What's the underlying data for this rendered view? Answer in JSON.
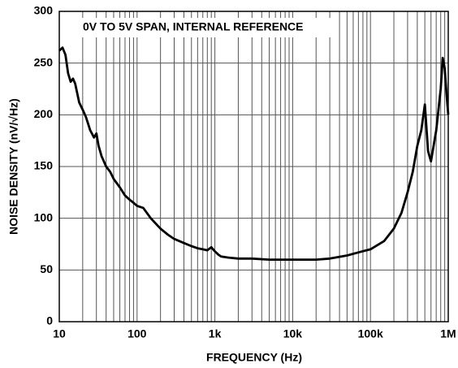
{
  "chart_data": {
    "type": "line",
    "annotation": "0V TO 5V SPAN, INTERNAL REFERENCE",
    "xlabel": "FREQUENCY (Hz)",
    "ylabel": "NOISE DENSITY (nV/√Hz)",
    "xscale": "log",
    "xlim": [
      10,
      1000000
    ],
    "ylim": [
      0,
      300
    ],
    "xticks": [
      10,
      100,
      {
        "value": 1000,
        "label": "1k"
      },
      {
        "value": 10000,
        "label": "10k"
      },
      {
        "value": 100000,
        "label": "100k"
      },
      {
        "value": 1000000,
        "label": "1M"
      }
    ],
    "x_minor_ticks": [
      20,
      30,
      40,
      50,
      60,
      70,
      80,
      90,
      200,
      300,
      400,
      500,
      600,
      700,
      800,
      900,
      2000,
      3000,
      4000,
      5000,
      6000,
      7000,
      8000,
      9000,
      20000,
      30000,
      40000,
      50000,
      60000,
      70000,
      80000,
      90000,
      200000,
      300000,
      400000,
      500000,
      600000,
      700000,
      800000,
      900000
    ],
    "yticks": [
      0,
      50,
      100,
      150,
      200,
      250,
      300
    ],
    "grid": true,
    "series": [
      {
        "color": "#000000",
        "x": [
          10,
          11,
          12,
          13,
          14,
          15,
          16,
          18,
          20,
          22,
          25,
          28,
          30,
          32,
          35,
          40,
          45,
          50,
          60,
          70,
          80,
          90,
          100,
          120,
          150,
          200,
          250,
          300,
          400,
          500,
          600,
          700,
          800,
          900,
          1000,
          1100,
          1200,
          1500,
          2000,
          3000,
          5000,
          7000,
          10000,
          20000,
          30000,
          50000,
          70000,
          100000,
          150000,
          200000,
          250000,
          300000,
          350000,
          400000,
          450000,
          500000,
          550000,
          600000,
          700000,
          800000,
          850000,
          900000,
          950000,
          1000000
        ],
        "values": [
          262,
          265,
          258,
          240,
          232,
          235,
          230,
          212,
          205,
          198,
          185,
          178,
          182,
          170,
          160,
          150,
          145,
          138,
          130,
          122,
          118,
          115,
          112,
          110,
          100,
          90,
          84,
          80,
          76,
          73,
          71,
          70,
          69,
          72,
          68,
          65,
          63,
          62,
          61,
          61,
          60,
          60,
          60,
          60,
          61,
          64,
          67,
          70,
          78,
          90,
          105,
          125,
          145,
          170,
          185,
          210,
          165,
          155,
          185,
          225,
          255,
          245,
          220,
          200
        ]
      }
    ]
  }
}
